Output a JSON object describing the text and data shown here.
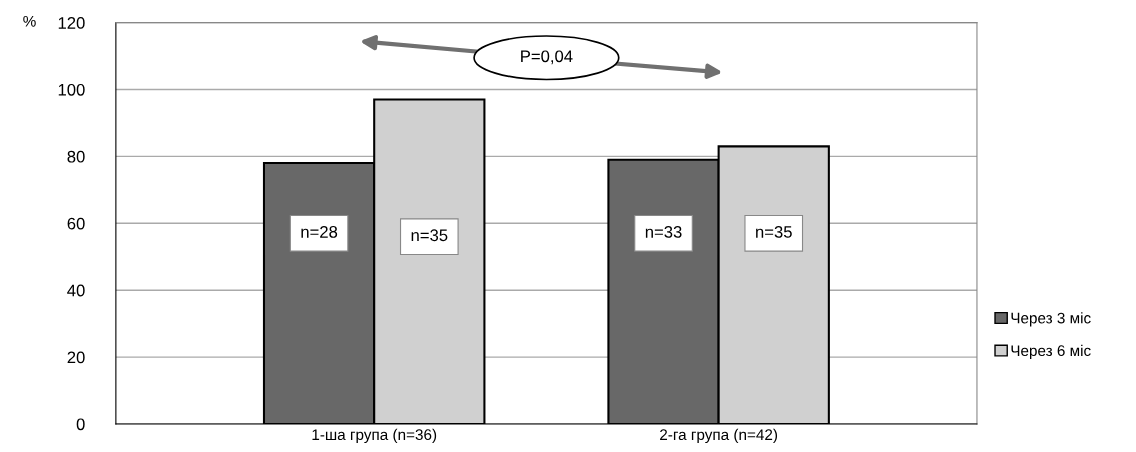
{
  "chart_data": {
    "type": "bar",
    "ylabel": "%",
    "categories": [
      "1-ша група (n=36)",
      "2-га група (n=42)"
    ],
    "series": [
      {
        "name": "Через 3 міс",
        "color": "#686868",
        "values": [
          78,
          79
        ]
      },
      {
        "name": "Через 6 міс",
        "color": "#d0d0d0",
        "values": [
          97,
          83
        ]
      }
    ],
    "ylim": [
      0,
      120
    ],
    "yticks": [
      0,
      20,
      40,
      60,
      80,
      100,
      120
    ],
    "grid": "y",
    "legend": "right",
    "annotations": [
      "P=0,04",
      {
        "text": "n=28",
        "x": "1-ша група (n=36)",
        "y": 57
      },
      {
        "text": "n=35",
        "x": "1-ша група (n=36)",
        "y": 56
      },
      {
        "text": "n=33",
        "x": "2-га група (n=42)",
        "y": 57
      },
      {
        "text": "n=35",
        "x": "2-га група (n=42)",
        "y": 57
      }
    ]
  }
}
